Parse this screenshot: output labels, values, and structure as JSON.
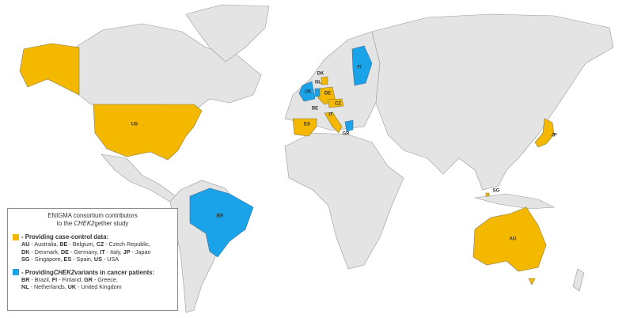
{
  "legend": {
    "title": [
      "ENIGMA consortium contributors",
      {
        "before": "to the ",
        "italic": "CHEK2",
        "after": "gether study"
      }
    ],
    "groups": [
      {
        "color": "#f5b800",
        "heading": {
          "before": "- Providing case-control data:",
          "italic": "",
          "after": ""
        },
        "lines": [
          [
            {
              "code": "AU",
              "text": " - Australia, "
            },
            {
              "code": "BE",
              "text": " - Belgium, "
            },
            {
              "code": "CZ",
              "text": " - Czech Republic,"
            }
          ],
          [
            {
              "code": "DK",
              "text": " - Denmark, "
            },
            {
              "code": "DE",
              "text": " - Germany, "
            },
            {
              "code": "IT",
              "text": " - Italy, "
            },
            {
              "code": "JP",
              "text": " - Japan"
            }
          ],
          [
            {
              "code": "SG",
              "text": " - Singapore, "
            },
            {
              "code": "ES",
              "text": " - Spain, "
            },
            {
              "code": "US",
              "text": " - USA"
            }
          ]
        ]
      },
      {
        "color": "#1aa3e8",
        "heading": {
          "before": "- Providing ",
          "italic": "CHEK2",
          "after": " variants in cancer patients:"
        },
        "lines": [
          [
            {
              "code": "BR",
              "text": " - Brazil, "
            },
            {
              "code": "FI",
              "text": " - Finland, "
            },
            {
              "code": "GR",
              "text": " - Greece,"
            }
          ],
          [
            {
              "code": "NL",
              "text": " - Netherlands, "
            },
            {
              "code": "UK",
              "text": " - United Kingdom"
            }
          ]
        ]
      }
    ]
  },
  "map_labels": [
    "US",
    "BR",
    "AU",
    "JP",
    "SG",
    "ES",
    "IT",
    "GR",
    "DE",
    "CZ",
    "DK",
    "NL",
    "BE",
    "UK",
    "FI"
  ]
}
